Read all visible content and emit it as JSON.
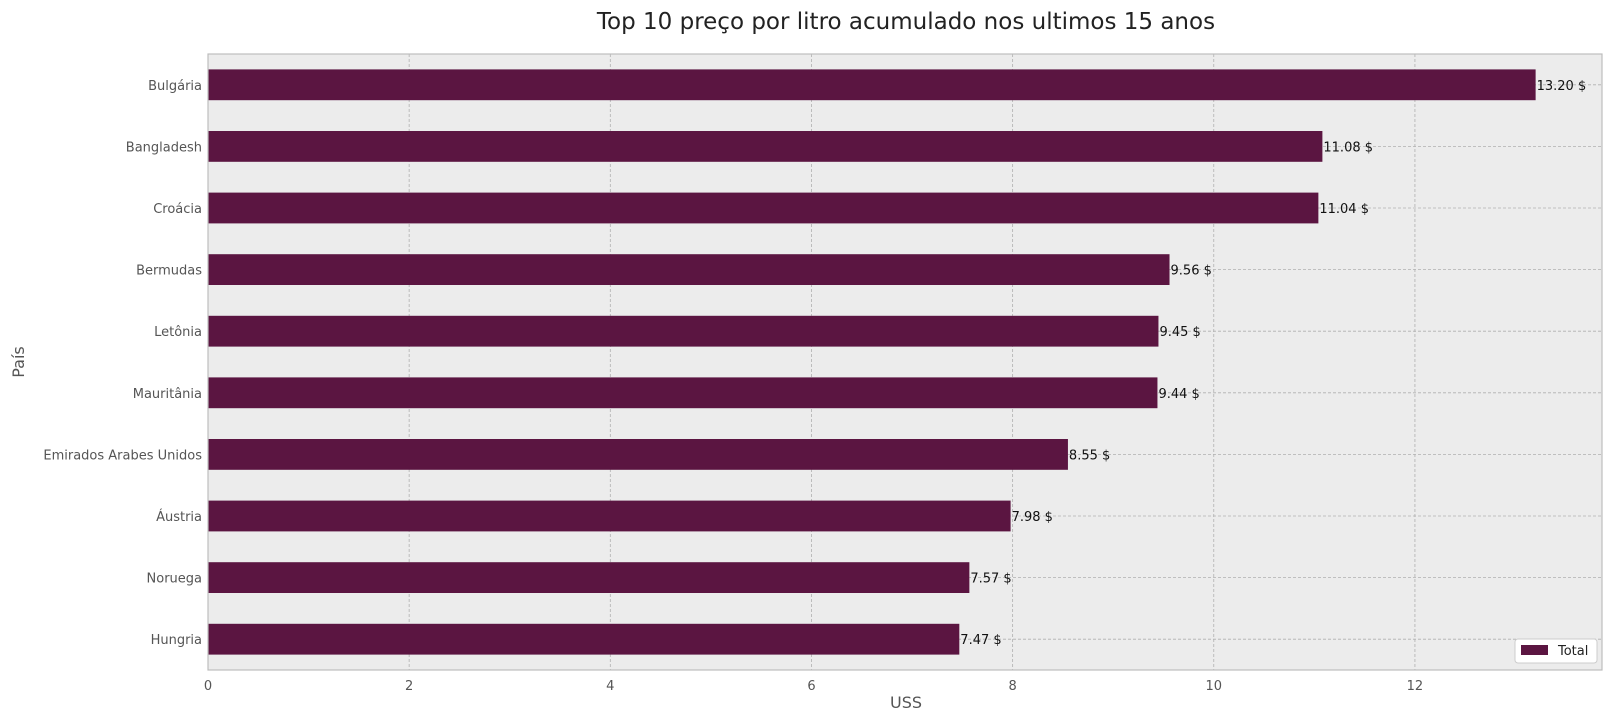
{
  "chart_data": {
    "type": "bar",
    "orientation": "horizontal",
    "title": "Top 10 preço por litro acumulado nos ultimos 15 anos",
    "xlabel": "USS",
    "ylabel": "País",
    "categories": [
      "Bulgária",
      "Bangladesh",
      "Croácia",
      "Bermudas",
      "Letônia",
      "Mauritânia",
      "Emirados Arabes Unidos",
      "Áustria",
      "Noruega",
      "Hungria"
    ],
    "series": [
      {
        "name": "Total",
        "values": [
          13.2,
          11.08,
          11.04,
          9.56,
          9.45,
          9.44,
          8.55,
          7.98,
          7.57,
          7.47
        ],
        "color": "#5b1541"
      }
    ],
    "data_labels": [
      "13.20 $",
      "11.08 $",
      "11.04 $",
      "9.56 $",
      "9.45 $",
      "9.44 $",
      "8.55 $",
      "7.98 $",
      "7.57 $",
      "7.47 $"
    ],
    "x_ticks": [
      "0",
      "2",
      "4",
      "6",
      "8",
      "10",
      "12"
    ],
    "xlim": [
      0,
      13.86
    ],
    "grid": true,
    "legend": "lower-right",
    "colors": {
      "bar": "#5b1541",
      "plot_background": "#ececec",
      "grid": "#b0b0b0",
      "frame": "#bdbdbd"
    }
  }
}
